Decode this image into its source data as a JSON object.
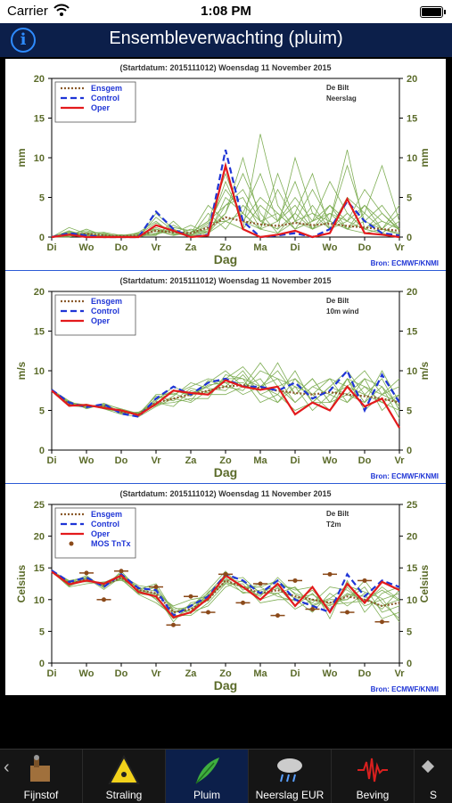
{
  "status": {
    "carrier": "Carrier",
    "time": "1:08 PM"
  },
  "nav": {
    "title": "Ensembleverwachting (pluim)",
    "info_glyph": "i"
  },
  "header_text": "(Startdatum: 2015111012)  Woensdag 11 November 2015",
  "source": "Bron: ECMWF/KNMI",
  "x_ticks": [
    "Di",
    "Wo",
    "Do",
    "Vr",
    "Za",
    "Zo",
    "Ma",
    "Di",
    "Wo",
    "Do",
    "Vr"
  ],
  "x_label": "Dag",
  "colors": {
    "ensemble": "#7fae55",
    "ensgem": "#8b5a2b",
    "control": "#1f35d6",
    "oper": "#e31a1c",
    "mos": "#8b4a1a"
  },
  "chart_data": [
    {
      "type": "line",
      "station": "De Bilt",
      "variable": "Neerslag",
      "ylabel": "mm",
      "ylim": [
        0,
        20
      ],
      "yticks": [
        0,
        5,
        10,
        15,
        20
      ],
      "legend": [
        "Ensgem",
        "Control",
        "Oper"
      ],
      "x": [
        0,
        0.5,
        1,
        1.5,
        2,
        2.5,
        3,
        3.5,
        4,
        4.5,
        5,
        5.5,
        6,
        6.5,
        7,
        7.5,
        8,
        8.5,
        9,
        9.5,
        10
      ],
      "series": [
        {
          "name": "Ensgem",
          "values": [
            0,
            0.3,
            0.4,
            0.2,
            0.1,
            0.2,
            0.8,
            0.6,
            0.5,
            1.2,
            2.5,
            2.0,
            1.6,
            1.4,
            1.8,
            1.5,
            1.7,
            1.4,
            1.2,
            1.0,
            0.8
          ]
        },
        {
          "name": "Control",
          "values": [
            0,
            0.5,
            0.2,
            0,
            0,
            0,
            3.2,
            1.0,
            0,
            0.3,
            11.0,
            2.0,
            0,
            0.2,
            0.5,
            0,
            1.0,
            4.5,
            2.0,
            0.5,
            0.2
          ]
        },
        {
          "name": "Oper",
          "values": [
            0,
            0.3,
            0,
            0,
            0,
            0,
            1.5,
            0.8,
            0,
            0.2,
            9.0,
            1.0,
            0,
            0.3,
            0.8,
            0,
            0.5,
            4.8,
            0.5,
            0.3,
            0
          ]
        }
      ],
      "ensemble": [
        [
          0,
          0.5,
          0.3,
          0,
          0,
          0.1,
          2.5,
          0.8,
          0.2,
          1.5,
          6,
          3,
          1,
          0.5,
          3,
          1,
          2,
          1,
          0.5,
          1,
          0.3
        ],
        [
          0,
          0.2,
          1.0,
          0.2,
          0,
          0,
          0.5,
          1.5,
          0.5,
          2,
          4,
          6,
          2,
          3,
          1,
          4,
          1,
          3,
          1,
          0.5,
          0
        ],
        [
          0,
          0,
          0.5,
          0.6,
          0.2,
          0.5,
          1,
          0.2,
          1,
          0.5,
          2,
          1,
          4,
          2,
          5,
          2,
          3,
          1,
          2,
          4,
          1
        ],
        [
          0,
          0.8,
          0.2,
          0.1,
          0.3,
          0,
          3,
          1,
          0.2,
          0.8,
          7,
          2,
          1,
          8,
          2,
          1,
          4,
          2,
          1,
          0.5,
          2
        ],
        [
          0,
          0.3,
          0,
          0.5,
          0,
          0.2,
          0.2,
          2,
          0,
          3,
          1,
          4,
          2,
          1,
          10,
          3,
          1,
          5,
          3,
          1,
          0.5
        ],
        [
          0,
          1.2,
          0.4,
          0,
          0.1,
          0,
          1,
          0.5,
          1.5,
          0.5,
          3,
          8,
          3,
          0.5,
          2,
          6,
          2,
          1,
          4,
          2,
          1
        ],
        [
          0,
          0.4,
          0.8,
          0.3,
          0,
          0.6,
          2,
          0.3,
          0.4,
          4,
          2,
          1,
          13,
          4,
          1,
          2,
          7,
          3,
          1,
          3,
          0.8
        ],
        [
          0,
          0.1,
          0.2,
          0,
          0.2,
          0.1,
          0.4,
          1.2,
          0.8,
          0.2,
          5,
          3,
          1,
          2,
          4,
          1,
          2,
          9,
          2,
          1,
          4
        ],
        [
          0,
          0.6,
          0.1,
          0.2,
          0,
          0.3,
          1.8,
          0.6,
          0.3,
          1,
          3,
          10,
          2,
          1,
          3,
          8,
          1,
          2,
          6,
          3,
          1
        ],
        [
          0,
          0.2,
          0.6,
          0.4,
          0.1,
          0,
          0.8,
          0.2,
          0.6,
          2,
          8,
          2,
          5,
          3,
          1,
          2,
          4,
          1,
          3,
          9,
          2
        ],
        [
          0,
          0.7,
          0.3,
          0,
          0.2,
          0.4,
          0.3,
          1,
          0.1,
          0.6,
          4,
          5,
          1,
          6,
          2,
          3,
          2,
          11,
          1,
          2,
          1
        ],
        [
          0,
          0.3,
          0.5,
          0.1,
          0,
          0.2,
          1.2,
          0.4,
          0.2,
          1.8,
          2,
          3,
          8,
          2,
          7,
          1,
          3,
          2,
          4,
          1,
          3
        ]
      ]
    },
    {
      "type": "line",
      "station": "De Bilt",
      "variable": "10m wind",
      "ylabel": "m/s",
      "ylim": [
        0,
        20
      ],
      "yticks": [
        0,
        5,
        10,
        15,
        20
      ],
      "legend": [
        "Ensgem",
        "Control",
        "Oper"
      ],
      "x": [
        0,
        0.5,
        1,
        1.5,
        2,
        2.5,
        3,
        3.5,
        4,
        4.5,
        5,
        5.5,
        6,
        6.5,
        7,
        7.5,
        8,
        8.5,
        9,
        9.5,
        10
      ],
      "series": [
        {
          "name": "Ensgem",
          "values": [
            7.5,
            5.8,
            5.5,
            5.6,
            4.8,
            4.5,
            6.0,
            6.5,
            7.0,
            7.5,
            8.0,
            8.2,
            7.8,
            7.5,
            7.2,
            7.0,
            7.3,
            7.0,
            6.8,
            6.5,
            6.0
          ]
        },
        {
          "name": "Control",
          "values": [
            7.6,
            6.0,
            5.4,
            5.8,
            4.6,
            4.2,
            6.5,
            8.0,
            7.0,
            8.5,
            9.0,
            8.0,
            8.0,
            7.5,
            8.5,
            6.5,
            7.5,
            10.0,
            5.0,
            9.5,
            6.0
          ]
        },
        {
          "name": "Oper",
          "values": [
            7.5,
            5.6,
            5.7,
            5.3,
            5.0,
            4.4,
            5.8,
            7.5,
            7.2,
            7.0,
            8.8,
            8.0,
            7.6,
            8.0,
            4.5,
            6.0,
            5.0,
            8.0,
            5.5,
            6.5,
            2.8
          ]
        }
      ],
      "ensemble": [
        [
          7.5,
          6,
          5.5,
          5.5,
          5,
          4.5,
          6.5,
          7.5,
          7,
          8,
          9,
          9,
          8,
          9,
          8,
          7,
          9,
          8,
          7,
          6,
          5
        ],
        [
          7.4,
          5.5,
          5.8,
          5.2,
          4.5,
          4.2,
          5.5,
          6.5,
          6,
          7.5,
          8,
          10,
          7,
          6,
          9,
          6,
          6,
          9,
          8,
          7,
          6
        ],
        [
          7.6,
          6.2,
          5.2,
          5.8,
          5.2,
          4.6,
          6,
          5.5,
          7.5,
          7,
          7,
          8,
          11,
          8,
          6,
          8,
          7,
          6,
          9,
          5,
          7
        ],
        [
          7.5,
          5.8,
          5.6,
          5.4,
          4.8,
          4.4,
          7,
          7,
          8,
          9,
          8.5,
          7,
          8,
          10,
          7,
          9,
          6,
          7,
          6,
          8,
          4
        ],
        [
          7.5,
          5.6,
          5.4,
          5.6,
          4.6,
          4.8,
          5.8,
          6,
          6.5,
          6.5,
          9.5,
          9,
          6,
          7,
          5,
          6,
          8,
          10,
          7,
          9,
          5
        ],
        [
          7.6,
          6,
          5.7,
          5.3,
          5,
          4.3,
          6.2,
          8,
          7,
          8.5,
          10,
          8,
          9,
          6,
          8,
          5,
          7,
          8,
          10,
          7,
          8
        ],
        [
          7.4,
          5.9,
          5.5,
          5.7,
          4.9,
          4.7,
          5.6,
          6.8,
          8.5,
          7.8,
          7.5,
          9.5,
          7,
          8,
          9,
          7,
          5,
          9,
          6,
          10,
          6
        ],
        [
          7.5,
          5.7,
          5.6,
          5.5,
          4.7,
          4.5,
          6.4,
          7.2,
          6.2,
          8.8,
          8,
          7.5,
          10,
          9,
          6,
          8,
          9,
          6,
          8,
          6,
          7
        ],
        [
          7.5,
          6.1,
          5.3,
          5.9,
          5.1,
          4.6,
          6.8,
          6.2,
          7.8,
          7.2,
          9,
          10.5,
          8,
          7,
          10,
          6,
          8,
          7,
          9,
          8,
          5.5
        ],
        [
          7.6,
          5.8,
          5.7,
          5.2,
          4.8,
          4.4,
          5.9,
          7.6,
          6.8,
          8.2,
          8.5,
          8.5,
          7.5,
          11,
          7,
          9,
          6,
          9,
          5,
          7,
          9
        ]
      ]
    },
    {
      "type": "line",
      "station": "De Bilt",
      "variable": "T2m",
      "ylabel": "Celsius",
      "ylim": [
        0,
        25
      ],
      "yticks": [
        0,
        5,
        10,
        15,
        20,
        25
      ],
      "legend": [
        "Ensgem",
        "Control",
        "Oper",
        "MOS TnTx"
      ],
      "x": [
        0,
        0.5,
        1,
        1.5,
        2,
        2.5,
        3,
        3.5,
        4,
        4.5,
        5,
        5.5,
        6,
        6.5,
        7,
        7.5,
        8,
        8.5,
        9,
        9.5,
        10
      ],
      "series": [
        {
          "name": "Ensgem",
          "values": [
            14.5,
            12.5,
            13.2,
            12.2,
            13.5,
            11.5,
            11.0,
            8.0,
            8.5,
            10.0,
            13.0,
            12.0,
            11.0,
            11.5,
            10.5,
            10.0,
            9.5,
            10.5,
            10.0,
            9.0,
            9.5
          ]
        },
        {
          "name": "Control",
          "values": [
            14.6,
            12.8,
            13.5,
            12.0,
            14.0,
            11.8,
            11.5,
            7.5,
            9.0,
            10.5,
            14.0,
            13.0,
            11.0,
            13.0,
            10.0,
            9.0,
            8.0,
            14.0,
            10.5,
            13.0,
            12.0
          ]
        },
        {
          "name": "Oper",
          "values": [
            14.4,
            12.4,
            13.0,
            12.5,
            13.8,
            11.2,
            10.5,
            7.2,
            8.0,
            10.2,
            13.8,
            12.0,
            10.0,
            12.5,
            9.0,
            12.0,
            8.0,
            12.5,
            9.5,
            12.8,
            11.5
          ]
        }
      ],
      "mos": [
        {
          "x": 1,
          "value": 14.2
        },
        {
          "x": 1.5,
          "value": 10.0
        },
        {
          "x": 2,
          "value": 14.5
        },
        {
          "x": 3,
          "value": 12.0
        },
        {
          "x": 3.5,
          "value": 6.0
        },
        {
          "x": 4,
          "value": 10.5
        },
        {
          "x": 4.5,
          "value": 8.0
        },
        {
          "x": 5,
          "value": 14.0
        },
        {
          "x": 5.5,
          "value": 9.5
        },
        {
          "x": 6,
          "value": 12.5
        },
        {
          "x": 6.5,
          "value": 7.5
        },
        {
          "x": 7,
          "value": 13.0
        },
        {
          "x": 7.5,
          "value": 8.5
        },
        {
          "x": 8,
          "value": 14.0
        },
        {
          "x": 8.5,
          "value": 8.0
        },
        {
          "x": 9,
          "value": 13.0
        },
        {
          "x": 9.5,
          "value": 6.5
        }
      ],
      "ensemble": [
        [
          14.5,
          13,
          13.5,
          12,
          14,
          11,
          12,
          8,
          9,
          11,
          14,
          12,
          12,
          13,
          11,
          10,
          9,
          11,
          10,
          9,
          10
        ],
        [
          14.4,
          12,
          12.5,
          12.8,
          13,
          12,
          10,
          7,
          8,
          9,
          12,
          13,
          10,
          11,
          12,
          9,
          10,
          10,
          12,
          8,
          9
        ],
        [
          14.6,
          12.6,
          13.8,
          11.8,
          14.5,
          11.5,
          11,
          9,
          10,
          10.5,
          13.5,
          11,
          11.5,
          12,
          9,
          11,
          8,
          12,
          9,
          10,
          11
        ],
        [
          14.5,
          12.2,
          13,
          12.4,
          13.2,
          10.8,
          9.5,
          7.5,
          7.5,
          9.5,
          12.5,
          12.5,
          9.5,
          10,
          10,
          8,
          11,
          9,
          11,
          7,
          8
        ],
        [
          14.5,
          12.8,
          12.8,
          12.6,
          13.8,
          12.2,
          11.8,
          8.5,
          8.8,
          11.5,
          14.5,
          11.5,
          12.5,
          12.5,
          11.5,
          12,
          7,
          13,
          8,
          11,
          12
        ],
        [
          14.4,
          12.4,
          13.4,
          11.6,
          13.6,
          11.2,
          10.8,
          6.5,
          9.5,
          10,
          13,
          13.5,
          11,
          11,
          8.5,
          10,
          9.5,
          10,
          13,
          9.5,
          7
        ],
        [
          14.6,
          12.7,
          13.1,
          12.3,
          14.2,
          11.6,
          12.5,
          8.2,
          8.2,
          10.8,
          12.8,
          12,
          10.5,
          13.5,
          10.8,
          9.5,
          12,
          11.5,
          9.5,
          12,
          10
        ],
        [
          14.5,
          12.3,
          13.6,
          12.1,
          13.4,
          11.4,
          10.2,
          7.8,
          9.2,
          9.8,
          13.8,
          11.8,
          12,
          10.5,
          9.8,
          11.5,
          8.5,
          10.8,
          10.5,
          8.5,
          11.5
        ],
        [
          14.5,
          12.9,
          12.9,
          12.7,
          13.9,
          11.9,
          11.3,
          8.8,
          7.8,
          11.2,
          13.2,
          12.8,
          11.2,
          12.2,
          11.8,
          9.2,
          10.2,
          12.2,
          11.2,
          10.2,
          6.5
        ],
        [
          14.4,
          12.1,
          13.3,
          12.2,
          13.3,
          10.9,
          10.6,
          7.1,
          8.6,
          10.4,
          12.6,
          11.2,
          10.8,
          11.8,
          10.2,
          10.8,
          9.2,
          9.5,
          9.8,
          11.5,
          9.8
        ]
      ]
    }
  ],
  "tabs": [
    {
      "label": "Fijnstof",
      "icon": "fijnstof-icon"
    },
    {
      "label": "Straling",
      "icon": "radiation-icon"
    },
    {
      "label": "Pluim",
      "icon": "feather-icon"
    },
    {
      "label": "Neerslag EUR",
      "icon": "rain-cloud-icon"
    },
    {
      "label": "Beving",
      "icon": "seismograph-icon"
    },
    {
      "label": "S",
      "icon": "satellite-icon"
    }
  ]
}
